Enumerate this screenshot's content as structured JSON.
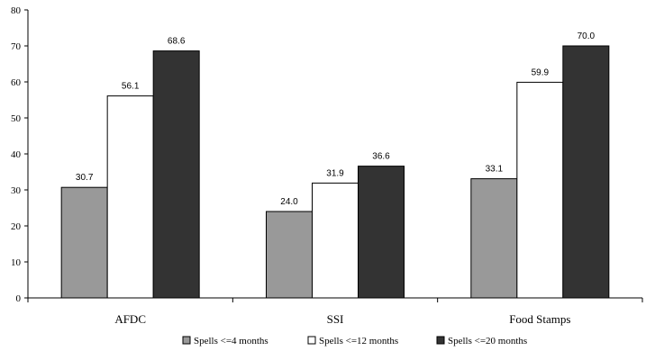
{
  "chart_data": {
    "type": "bar",
    "title": "",
    "xlabel": "",
    "ylabel": "",
    "ylim": [
      0,
      80
    ],
    "yticks": [
      0,
      10,
      20,
      30,
      40,
      50,
      60,
      70,
      80
    ],
    "categories": [
      "AFDC",
      "SSI",
      "Food Stamps"
    ],
    "series": [
      {
        "name": "Spells <=4 months",
        "color": "#999999",
        "values": [
          30.7,
          24.0,
          33.1
        ],
        "labels": [
          "30.7",
          "24.0",
          "33.1"
        ]
      },
      {
        "name": "Spells <=12 months",
        "color": "#ffffff",
        "values": [
          56.1,
          31.9,
          59.9
        ],
        "labels": [
          "56.1",
          "31.9",
          "59.9"
        ]
      },
      {
        "name": "Spells <=20 months",
        "color": "#333333",
        "values": [
          68.6,
          36.6,
          70.0
        ],
        "labels": [
          "68.6",
          "36.6",
          "70.0"
        ]
      }
    ],
    "grid": false,
    "legend": "bottom"
  }
}
